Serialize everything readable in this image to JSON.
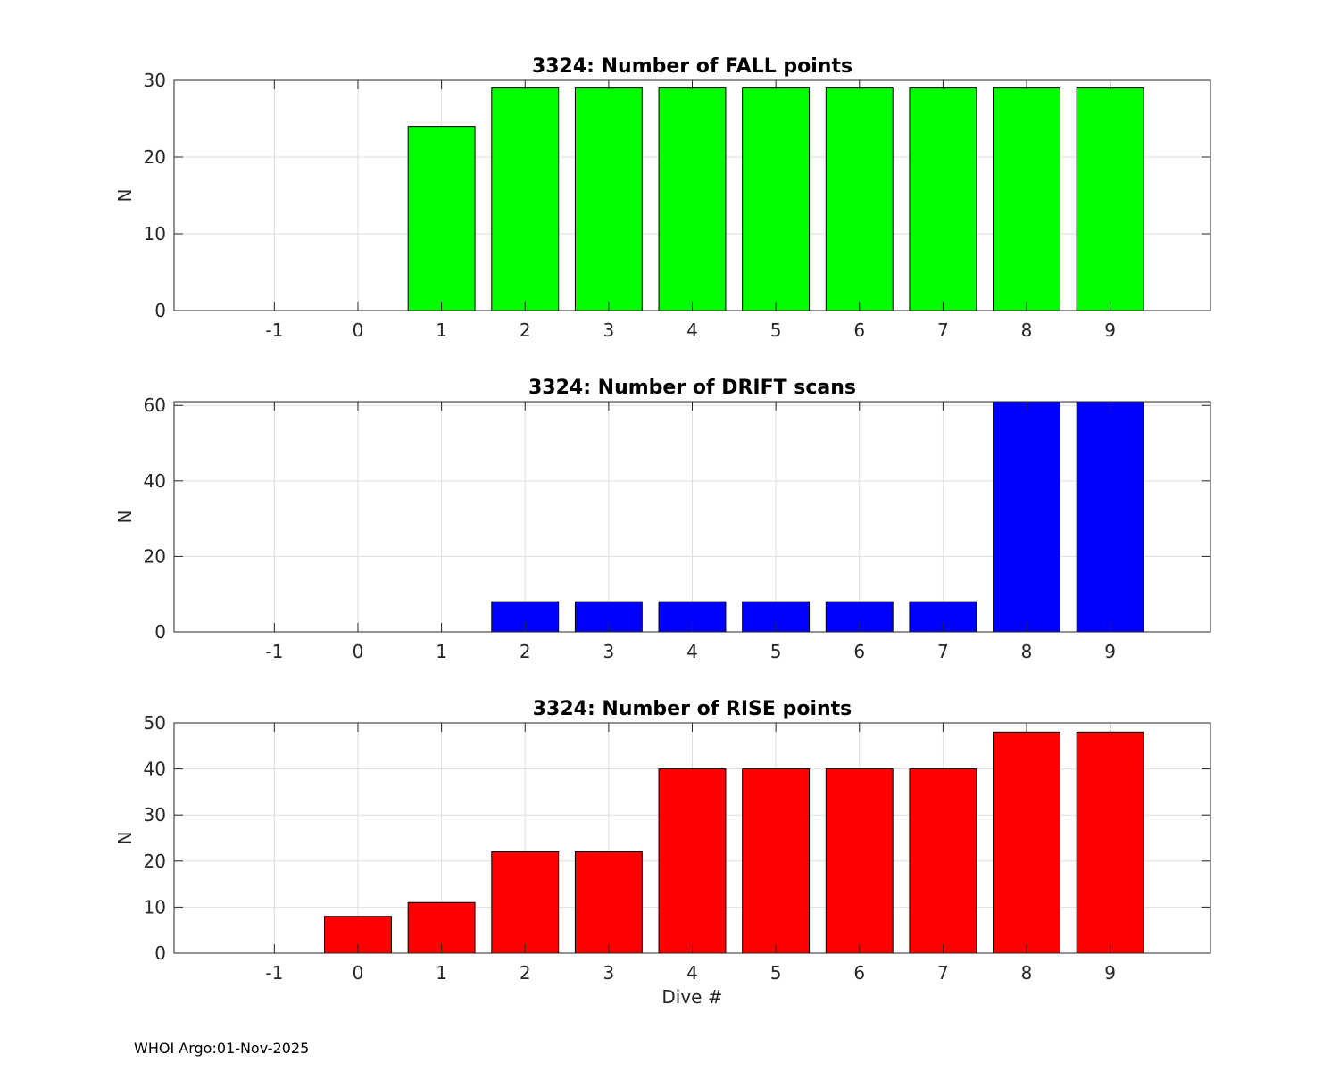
{
  "footer": "WHOI Argo:01-Nov-2025",
  "chart_data": [
    {
      "type": "bar",
      "title": "3324: Number of FALL points",
      "xlabel": "",
      "ylabel": "N",
      "categories": [
        "-1",
        "0",
        "1",
        "2",
        "3",
        "4",
        "5",
        "6",
        "7",
        "8",
        "9"
      ],
      "values": [
        0,
        0,
        24,
        29,
        29,
        29,
        29,
        29,
        29,
        29,
        29
      ],
      "xlim": [
        -2.2,
        10.2
      ],
      "ylim": [
        0,
        30
      ],
      "yticks": [
        0,
        10,
        20,
        30
      ],
      "color": "#00ff00",
      "grid": true
    },
    {
      "type": "bar",
      "title": "3324: Number of DRIFT scans",
      "xlabel": "",
      "ylabel": "N",
      "categories": [
        "-1",
        "0",
        "1",
        "2",
        "3",
        "4",
        "5",
        "6",
        "7",
        "8",
        "9"
      ],
      "values": [
        0,
        0,
        0,
        8,
        8,
        8,
        8,
        8,
        8,
        61,
        61
      ],
      "xlim": [
        -2.2,
        10.2
      ],
      "ylim": [
        0,
        61
      ],
      "yticks": [
        0,
        20,
        40,
        60
      ],
      "color": "#0000ff",
      "grid": true
    },
    {
      "type": "bar",
      "title": "3324: Number of RISE points",
      "xlabel": "Dive #",
      "ylabel": "N",
      "categories": [
        "-1",
        "0",
        "1",
        "2",
        "3",
        "4",
        "5",
        "6",
        "7",
        "8",
        "9"
      ],
      "values": [
        0,
        8,
        11,
        22,
        22,
        40,
        40,
        40,
        40,
        48,
        48
      ],
      "xlim": [
        -2.2,
        10.2
      ],
      "ylim": [
        0,
        50
      ],
      "yticks": [
        0,
        10,
        20,
        30,
        40,
        50
      ],
      "color": "#ff0000",
      "grid": true
    }
  ]
}
